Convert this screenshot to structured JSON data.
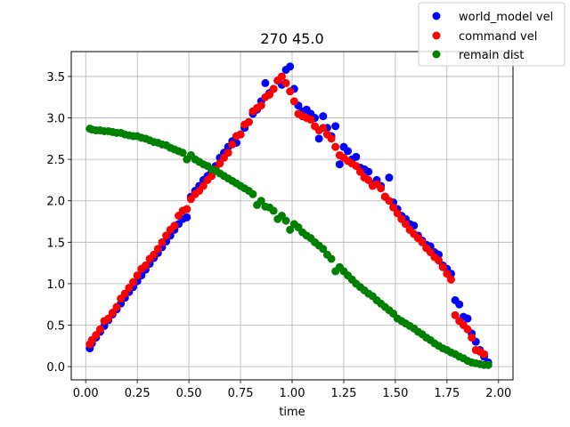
{
  "chart_data": {
    "type": "scatter",
    "title": "270  45.0",
    "xlabel": "time",
    "ylabel": "",
    "xlim": [
      -0.07,
      2.07
    ],
    "ylim": [
      -0.16,
      3.8
    ],
    "xticks": [
      0.0,
      0.25,
      0.5,
      0.75,
      1.0,
      1.25,
      1.5,
      1.75,
      2.0
    ],
    "xtick_labels": [
      "0.00",
      "0.25",
      "0.50",
      "0.75",
      "1.00",
      "1.25",
      "1.50",
      "1.75",
      "2.00"
    ],
    "yticks": [
      0.0,
      0.5,
      1.0,
      1.5,
      2.0,
      2.5,
      3.0,
      3.5
    ],
    "ytick_labels": [
      "0.0",
      "0.5",
      "1.0",
      "1.5",
      "2.0",
      "2.5",
      "3.0",
      "3.5"
    ],
    "grid": true,
    "legend_position": "top-right",
    "series": [
      {
        "name": "world_model vel",
        "color": "#0000ff",
        "x": [
          0.02,
          0.03,
          0.05,
          0.07,
          0.09,
          0.11,
          0.13,
          0.15,
          0.17,
          0.19,
          0.21,
          0.23,
          0.25,
          0.27,
          0.29,
          0.31,
          0.33,
          0.35,
          0.37,
          0.39,
          0.41,
          0.43,
          0.45,
          0.47,
          0.49,
          0.51,
          0.53,
          0.55,
          0.57,
          0.59,
          0.61,
          0.63,
          0.65,
          0.67,
          0.69,
          0.71,
          0.73,
          0.75,
          0.77,
          0.79,
          0.81,
          0.83,
          0.85,
          0.87,
          0.89,
          0.91,
          0.93,
          0.95,
          0.97,
          0.99,
          1.01,
          1.03,
          1.05,
          1.07,
          1.09,
          1.11,
          1.13,
          1.15,
          1.17,
          1.19,
          1.21,
          1.23,
          1.25,
          1.27,
          1.29,
          1.31,
          1.33,
          1.35,
          1.37,
          1.39,
          1.41,
          1.43,
          1.45,
          1.47,
          1.49,
          1.51,
          1.53,
          1.55,
          1.57,
          1.59,
          1.61,
          1.63,
          1.65,
          1.67,
          1.69,
          1.71,
          1.73,
          1.75,
          1.77,
          1.79,
          1.81,
          1.83,
          1.85,
          1.87,
          1.89,
          1.91,
          1.93,
          1.95
        ],
        "y": [
          0.22,
          0.28,
          0.35,
          0.42,
          0.49,
          0.56,
          0.63,
          0.69,
          0.76,
          0.83,
          0.9,
          0.96,
          1.03,
          1.1,
          1.17,
          1.24,
          1.31,
          1.37,
          1.44,
          1.51,
          1.58,
          1.65,
          1.72,
          1.78,
          1.8,
          2.05,
          2.12,
          2.18,
          2.25,
          2.3,
          2.35,
          2.42,
          2.52,
          2.58,
          2.65,
          2.72,
          2.7,
          2.8,
          2.88,
          2.95,
          3.05,
          3.1,
          3.2,
          3.42,
          3.3,
          3.35,
          3.45,
          3.4,
          3.58,
          3.62,
          3.35,
          3.15,
          3.08,
          3.1,
          3.05,
          3.0,
          2.75,
          3.02,
          2.88,
          2.78,
          2.9,
          2.44,
          2.65,
          2.6,
          2.5,
          2.53,
          2.4,
          2.38,
          2.35,
          2.2,
          2.25,
          2.18,
          2.05,
          2.28,
          1.98,
          1.9,
          1.82,
          1.78,
          1.72,
          1.7,
          1.58,
          1.52,
          1.47,
          1.45,
          1.38,
          1.35,
          1.22,
          1.18,
          1.12,
          0.8,
          0.75,
          0.6,
          0.58,
          0.4,
          0.3,
          0.2,
          0.12,
          0.05
        ]
      },
      {
        "name": "command vel",
        "color": "#ff0000",
        "x": [
          0.02,
          0.03,
          0.05,
          0.07,
          0.09,
          0.11,
          0.13,
          0.15,
          0.17,
          0.19,
          0.21,
          0.23,
          0.25,
          0.27,
          0.29,
          0.31,
          0.33,
          0.35,
          0.37,
          0.39,
          0.41,
          0.43,
          0.45,
          0.47,
          0.49,
          0.51,
          0.53,
          0.55,
          0.57,
          0.59,
          0.61,
          0.63,
          0.65,
          0.67,
          0.69,
          0.71,
          0.73,
          0.75,
          0.77,
          0.79,
          0.81,
          0.83,
          0.85,
          0.87,
          0.89,
          0.91,
          0.93,
          0.95,
          0.97,
          0.99,
          1.01,
          1.03,
          1.05,
          1.07,
          1.09,
          1.11,
          1.13,
          1.15,
          1.17,
          1.19,
          1.21,
          1.23,
          1.25,
          1.27,
          1.29,
          1.31,
          1.33,
          1.35,
          1.37,
          1.39,
          1.41,
          1.43,
          1.45,
          1.47,
          1.49,
          1.51,
          1.53,
          1.55,
          1.57,
          1.59,
          1.61,
          1.63,
          1.65,
          1.67,
          1.69,
          1.71,
          1.73,
          1.75,
          1.77,
          1.79,
          1.81,
          1.83,
          1.85,
          1.87,
          1.89,
          1.91,
          1.93,
          1.95
        ],
        "y": [
          0.27,
          0.32,
          0.38,
          0.45,
          0.55,
          0.58,
          0.65,
          0.72,
          0.82,
          0.88,
          0.95,
          1.02,
          1.1,
          1.18,
          1.22,
          1.3,
          1.35,
          1.42,
          1.5,
          1.58,
          1.65,
          1.7,
          1.82,
          1.88,
          1.9,
          2.02,
          2.08,
          2.12,
          2.18,
          2.25,
          2.3,
          2.38,
          2.45,
          2.52,
          2.58,
          2.68,
          2.78,
          2.8,
          2.92,
          2.95,
          3.08,
          3.12,
          3.15,
          3.25,
          3.28,
          3.35,
          3.45,
          3.5,
          3.42,
          3.32,
          3.2,
          3.05,
          3.02,
          3.0,
          2.98,
          2.9,
          2.85,
          2.88,
          2.8,
          2.75,
          2.65,
          2.55,
          2.52,
          2.48,
          2.45,
          2.42,
          2.35,
          2.28,
          2.25,
          2.18,
          2.2,
          2.15,
          2.05,
          2.0,
          1.92,
          1.85,
          1.78,
          1.72,
          1.65,
          1.6,
          1.55,
          1.5,
          1.43,
          1.38,
          1.32,
          1.28,
          1.2,
          1.12,
          1.05,
          0.62,
          0.55,
          0.5,
          0.45,
          0.35,
          0.2,
          0.18,
          0.15,
          0.02
        ]
      },
      {
        "name": "remain dist",
        "color": "#008000",
        "x": [
          0.02,
          0.03,
          0.05,
          0.07,
          0.09,
          0.11,
          0.13,
          0.15,
          0.17,
          0.19,
          0.21,
          0.23,
          0.25,
          0.27,
          0.29,
          0.31,
          0.33,
          0.35,
          0.37,
          0.39,
          0.41,
          0.43,
          0.45,
          0.47,
          0.49,
          0.51,
          0.53,
          0.55,
          0.57,
          0.59,
          0.61,
          0.63,
          0.65,
          0.67,
          0.69,
          0.71,
          0.73,
          0.75,
          0.77,
          0.79,
          0.81,
          0.83,
          0.85,
          0.87,
          0.89,
          0.91,
          0.93,
          0.95,
          0.97,
          0.99,
          1.01,
          1.03,
          1.05,
          1.07,
          1.09,
          1.11,
          1.13,
          1.15,
          1.17,
          1.19,
          1.21,
          1.23,
          1.25,
          1.27,
          1.29,
          1.31,
          1.33,
          1.35,
          1.37,
          1.39,
          1.41,
          1.43,
          1.45,
          1.47,
          1.49,
          1.51,
          1.53,
          1.55,
          1.57,
          1.59,
          1.61,
          1.63,
          1.65,
          1.67,
          1.69,
          1.71,
          1.73,
          1.75,
          1.77,
          1.79,
          1.81,
          1.83,
          1.85,
          1.87,
          1.89,
          1.91,
          1.93,
          1.95
        ],
        "y": [
          2.87,
          2.86,
          2.85,
          2.85,
          2.84,
          2.84,
          2.83,
          2.82,
          2.82,
          2.8,
          2.79,
          2.78,
          2.78,
          2.76,
          2.75,
          2.73,
          2.71,
          2.7,
          2.68,
          2.67,
          2.64,
          2.62,
          2.6,
          2.58,
          2.5,
          2.55,
          2.5,
          2.47,
          2.44,
          2.42,
          2.38,
          2.36,
          2.33,
          2.3,
          2.27,
          2.24,
          2.21,
          2.18,
          2.15,
          2.12,
          2.08,
          1.95,
          2.0,
          1.93,
          1.92,
          1.88,
          1.78,
          1.82,
          1.76,
          1.65,
          1.72,
          1.68,
          1.62,
          1.58,
          1.55,
          1.5,
          1.46,
          1.42,
          1.35,
          1.3,
          1.15,
          1.2,
          1.15,
          1.1,
          1.05,
          1.0,
          0.96,
          0.92,
          0.88,
          0.85,
          0.8,
          0.76,
          0.72,
          0.68,
          0.64,
          0.58,
          0.55,
          0.52,
          0.49,
          0.46,
          0.42,
          0.39,
          0.35,
          0.32,
          0.28,
          0.25,
          0.22,
          0.2,
          0.17,
          0.15,
          0.12,
          0.1,
          0.07,
          0.05,
          0.04,
          0.03,
          0.02,
          0.02
        ]
      }
    ]
  }
}
